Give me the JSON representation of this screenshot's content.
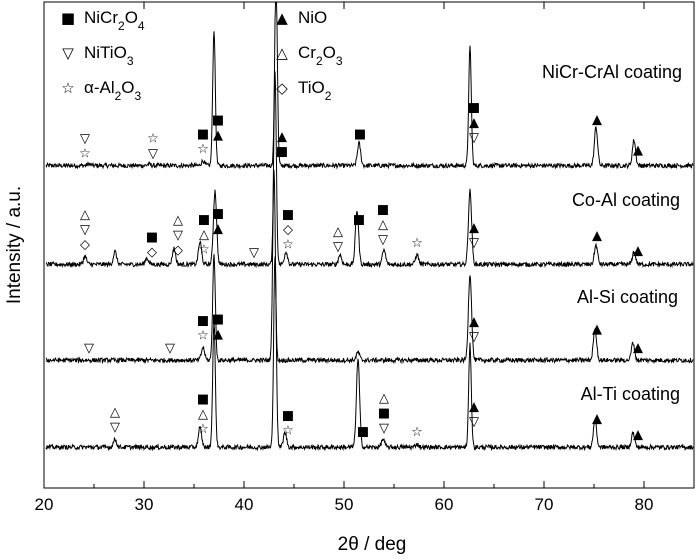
{
  "chart_data": {
    "type": "line",
    "xlabel": "2θ / deg",
    "ylabel": "Intensity / a.u.",
    "xlim": [
      20,
      85
    ],
    "xticks": [
      20,
      30,
      40,
      50,
      60,
      70,
      80
    ],
    "xtick_labels": [
      "20",
      "30",
      "40",
      "50",
      "60",
      "70",
      "80"
    ],
    "legend": [
      {
        "symbol": "■",
        "name": "NiCr2O4",
        "base": "NiCr",
        "sub1": "2",
        "mid": "O",
        "sub2": "4"
      },
      {
        "symbol": "▽",
        "name": "NiTiO3",
        "base": "NiTiO",
        "sub1": "3",
        "mid": "",
        "sub2": ""
      },
      {
        "symbol": "☆",
        "name": "α-Al2O3",
        "base": "α-Al",
        "sub1": "2",
        "mid": "O",
        "sub2": "3"
      },
      {
        "symbol": "▲",
        "name": "NiO",
        "base": "NiO",
        "sub1": "",
        "mid": "",
        "sub2": ""
      },
      {
        "symbol": "△",
        "name": "Cr2O3",
        "base": "Cr",
        "sub1": "2",
        "mid": "O",
        "sub2": "3"
      },
      {
        "symbol": "◇",
        "name": "TiO2",
        "base": "TiO",
        "sub1": "2",
        "mid": "",
        "sub2": ""
      }
    ],
    "series": [
      {
        "name": "NiCr-CrAl coating",
        "baseline": 0.4,
        "peaks": [
          [
            37.0,
            8.5
          ],
          [
            43.2,
            12
          ],
          [
            51.5,
            1.4
          ],
          [
            62.6,
            7.4
          ],
          [
            75.2,
            2.4
          ],
          [
            79.0,
            1.6
          ],
          [
            35.9,
            0.3
          ],
          [
            24.5,
            0.1
          ],
          [
            30.5,
            0.1
          ]
        ],
        "markers": [
          {
            "x": 24.1,
            "symbols": [
              "▽",
              "☆"
            ]
          },
          {
            "x": 30.9,
            "symbols": [
              "☆",
              "▽"
            ]
          },
          {
            "x": 35.9,
            "symbols": [
              "■",
              "☆"
            ]
          },
          {
            "x": 37.4,
            "symbols": [
              "■",
              "▲"
            ]
          },
          {
            "x": 43.8,
            "symbols": [
              "▲",
              "■"
            ]
          },
          {
            "x": 51.6,
            "symbols": [
              "■"
            ]
          },
          {
            "x": 63.0,
            "symbols": [
              "■",
              "▲",
              "▽"
            ]
          },
          {
            "x": 75.3,
            "symbols": [
              "▲"
            ]
          },
          {
            "x": 79.4,
            "symbols": [
              "▲"
            ]
          }
        ]
      },
      {
        "name": "Co-Al coating",
        "baseline": 0.35,
        "peaks": [
          [
            24.1,
            0.5
          ],
          [
            27.1,
            0.8
          ],
          [
            30.3,
            0.4
          ],
          [
            33.0,
            1.0
          ],
          [
            35.6,
            1.4
          ],
          [
            37.1,
            4.6
          ],
          [
            43.1,
            12
          ],
          [
            44.2,
            0.8
          ],
          [
            49.6,
            0.6
          ],
          [
            51.3,
            3.4
          ],
          [
            54.0,
            0.9
          ],
          [
            57.3,
            0.6
          ],
          [
            62.6,
            4.6
          ],
          [
            75.2,
            1.2
          ],
          [
            79.0,
            0.8
          ]
        ],
        "markers": [
          {
            "x": 24.1,
            "symbols": [
              "△",
              "▽",
              "◇"
            ]
          },
          {
            "x": 30.8,
            "symbols": [
              "■",
              "◇"
            ]
          },
          {
            "x": 33.4,
            "symbols": [
              "△",
              "▽",
              "◇"
            ]
          },
          {
            "x": 36.0,
            "symbols": [
              "■",
              "△",
              "☆"
            ]
          },
          {
            "x": 37.4,
            "symbols": [
              "■",
              "▲"
            ]
          },
          {
            "x": 41.0,
            "symbols": [
              "▽"
            ]
          },
          {
            "x": 44.4,
            "symbols": [
              "■",
              "◇",
              "☆"
            ]
          },
          {
            "x": 49.4,
            "symbols": [
              "△",
              "▽"
            ]
          },
          {
            "x": 51.5,
            "symbols": [
              "■"
            ]
          },
          {
            "x": 53.9,
            "symbols": [
              "■",
              "△",
              "▽"
            ]
          },
          {
            "x": 57.3,
            "symbols": [
              "☆"
            ]
          },
          {
            "x": 63.0,
            "symbols": [
              "▲",
              "▽"
            ]
          },
          {
            "x": 75.3,
            "symbols": [
              "▲"
            ]
          },
          {
            "x": 79.4,
            "symbols": [
              "▲"
            ]
          }
        ]
      },
      {
        "name": "Al-Si coating",
        "baseline": 0.3,
        "peaks": [
          [
            35.9,
            0.8
          ],
          [
            37.0,
            6.6
          ],
          [
            43.0,
            12
          ],
          [
            51.4,
            0.5
          ],
          [
            62.6,
            5.4
          ],
          [
            75.1,
            2.0
          ],
          [
            78.9,
            1.1
          ]
        ],
        "markers": [
          {
            "x": 24.5,
            "symbols": [
              "▽"
            ]
          },
          {
            "x": 32.6,
            "symbols": [
              "▽"
            ]
          },
          {
            "x": 35.9,
            "symbols": [
              "■",
              "☆"
            ]
          },
          {
            "x": 37.4,
            "symbols": [
              "■",
              "▲"
            ]
          },
          {
            "x": 63.0,
            "symbols": [
              "▲",
              "▽"
            ]
          },
          {
            "x": 75.3,
            "symbols": [
              "▲"
            ]
          },
          {
            "x": 79.4,
            "symbols": [
              "▲"
            ]
          }
        ]
      },
      {
        "name": "Al-Ti coating",
        "baseline": 0.3,
        "peaks": [
          [
            27.1,
            0.5
          ],
          [
            35.6,
            1.2
          ],
          [
            37.0,
            7.8
          ],
          [
            43.1,
            12
          ],
          [
            44.1,
            0.9
          ],
          [
            51.4,
            5.5
          ],
          [
            53.9,
            0.5
          ],
          [
            57.3,
            0.2
          ],
          [
            62.6,
            6.4
          ],
          [
            75.1,
            1.7
          ],
          [
            78.9,
            0.9
          ]
        ],
        "markers": [
          {
            "x": 27.1,
            "symbols": [
              "△",
              "▽"
            ]
          },
          {
            "x": 35.9,
            "symbols": [
              "■",
              "△",
              "☆"
            ]
          },
          {
            "x": 44.4,
            "symbols": [
              "■",
              "☆"
            ]
          },
          {
            "x": 51.9,
            "symbols": [
              "■"
            ]
          },
          {
            "x": 54.0,
            "symbols": [
              "△",
              "■",
              "▽"
            ]
          },
          {
            "x": 57.3,
            "symbols": [
              "☆"
            ]
          },
          {
            "x": 63.0,
            "symbols": [
              "▲",
              "▽"
            ]
          },
          {
            "x": 75.3,
            "symbols": [
              "▲"
            ]
          },
          {
            "x": 79.4,
            "symbols": [
              "▲"
            ]
          }
        ]
      }
    ]
  }
}
